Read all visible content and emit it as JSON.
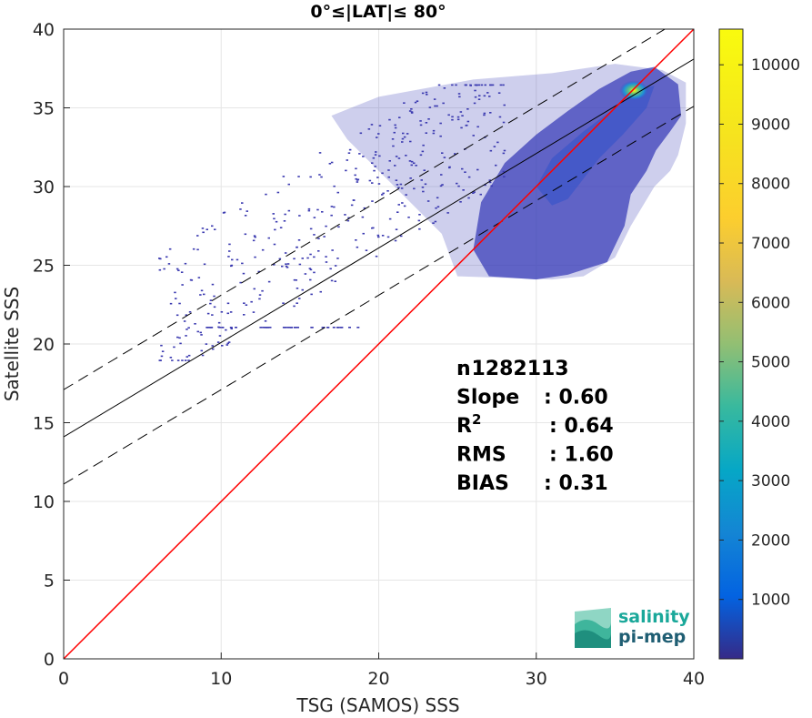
{
  "chart_data": {
    "type": "heatmap",
    "title": "0°≤|LAT|≤ 80°",
    "xlabel": "TSG (SAMOS) SSS",
    "ylabel": "Satellite SSS",
    "xlim": [
      0,
      40
    ],
    "ylim": [
      0,
      40
    ],
    "xticks": [
      "0",
      "10",
      "20",
      "30",
      "40"
    ],
    "yticks": [
      "0",
      "5",
      "10",
      "15",
      "20",
      "25",
      "30",
      "35",
      "40"
    ],
    "grid": true,
    "colorbar": {
      "range": [
        0,
        10600
      ],
      "ticks": [
        "1000",
        "2000",
        "3000",
        "4000",
        "5000",
        "6000",
        "7000",
        "8000",
        "9000",
        "10000"
      ],
      "colormap": "parula"
    },
    "lines": {
      "identity": {
        "slope": 1,
        "intercept": 0,
        "color": "#ff0000"
      },
      "regression": {
        "slope": 0.6,
        "intercept": 14.1,
        "color": "#000000"
      },
      "regression_upper": {
        "slope": 0.6,
        "intercept": 17.1,
        "style": "dashed"
      },
      "regression_lower": {
        "slope": 0.6,
        "intercept": 11.1,
        "style": "dashed"
      }
    },
    "stats": [
      {
        "label": "n",
        "sup": "",
        "value": ": 1282113"
      },
      {
        "label": "Slope",
        "sup": "",
        "value": ": 0.60"
      },
      {
        "label": "R",
        "sup": "2",
        "value": ": 0.64"
      },
      {
        "label": "RMS",
        "sup": "",
        "value": ": 1.60"
      },
      {
        "label": "BIAS",
        "sup": "",
        "value": ": 0.31"
      }
    ]
  },
  "logo": {
    "line1": "salinity",
    "line2": "pi-mep",
    "color1": "#1aa89a",
    "color2": "#1f5e73"
  }
}
